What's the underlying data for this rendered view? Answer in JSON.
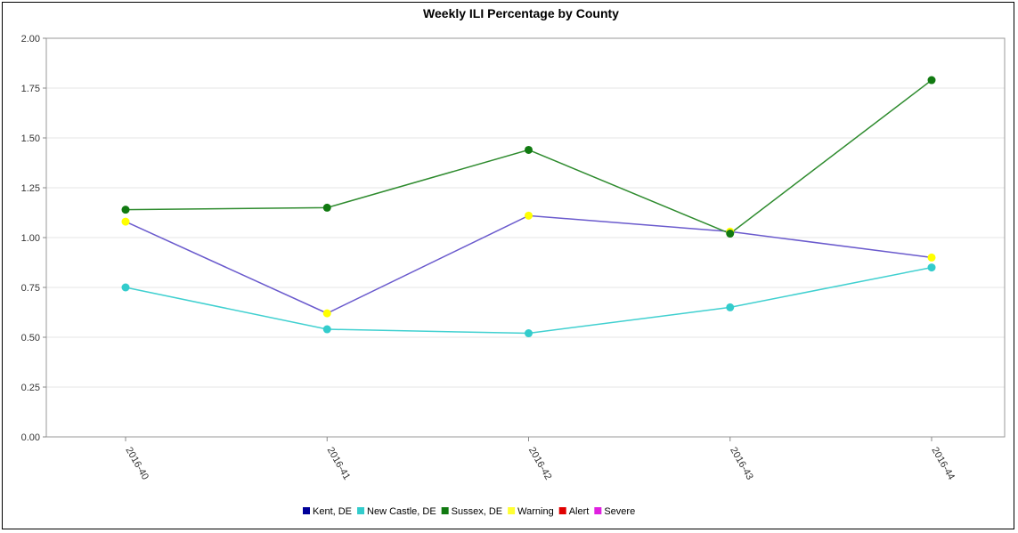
{
  "chart_data": {
    "type": "line",
    "title": "Weekly ILI Percentage by County",
    "xlabel": "",
    "ylabel": "",
    "categories": [
      "2016-40",
      "2016-41",
      "2016-42",
      "2016-43",
      "2016-44"
    ],
    "ylim": [
      0,
      2
    ],
    "yticks": [
      "0.00",
      "0.25",
      "0.50",
      "0.75",
      "1.00",
      "1.25",
      "1.50",
      "1.75",
      "2.00"
    ],
    "grid": true,
    "legend_position": "bottom",
    "series": [
      {
        "name": "Kent, DE",
        "color": "#6a5acd",
        "legend_color": "#00008b",
        "values": [
          1.08,
          0.62,
          1.11,
          1.03,
          0.9
        ],
        "marker_colors": [
          "#ffff00",
          "#ffff00",
          "#ffff00",
          "#ffff00",
          "#ffff00"
        ]
      },
      {
        "name": "New Castle, DE",
        "color": "#40d0d0",
        "legend_color": "#40d0d0",
        "values": [
          0.75,
          0.54,
          0.52,
          0.65,
          0.85
        ],
        "marker_colors": [
          "#33cccc",
          "#33cccc",
          "#33cccc",
          "#33cccc",
          "#33cccc"
        ]
      },
      {
        "name": "Sussex, DE",
        "color": "#2e8b2e",
        "legend_color": "#1a7a1a",
        "values": [
          1.14,
          1.15,
          1.44,
          1.02,
          1.79
        ],
        "marker_colors": [
          "#117a11",
          "#117a11",
          "#117a11",
          "#117a11",
          "#117a11"
        ]
      }
    ],
    "legend": [
      {
        "name": "Kent, DE",
        "color": "#000099"
      },
      {
        "name": "New Castle, DE",
        "color": "#33cccc"
      },
      {
        "name": "Sussex, DE",
        "color": "#117a11"
      },
      {
        "name": "Warning",
        "color": "#ffff33"
      },
      {
        "name": "Alert",
        "color": "#e00000"
      },
      {
        "name": "Severe",
        "color": "#e020e0"
      }
    ]
  }
}
